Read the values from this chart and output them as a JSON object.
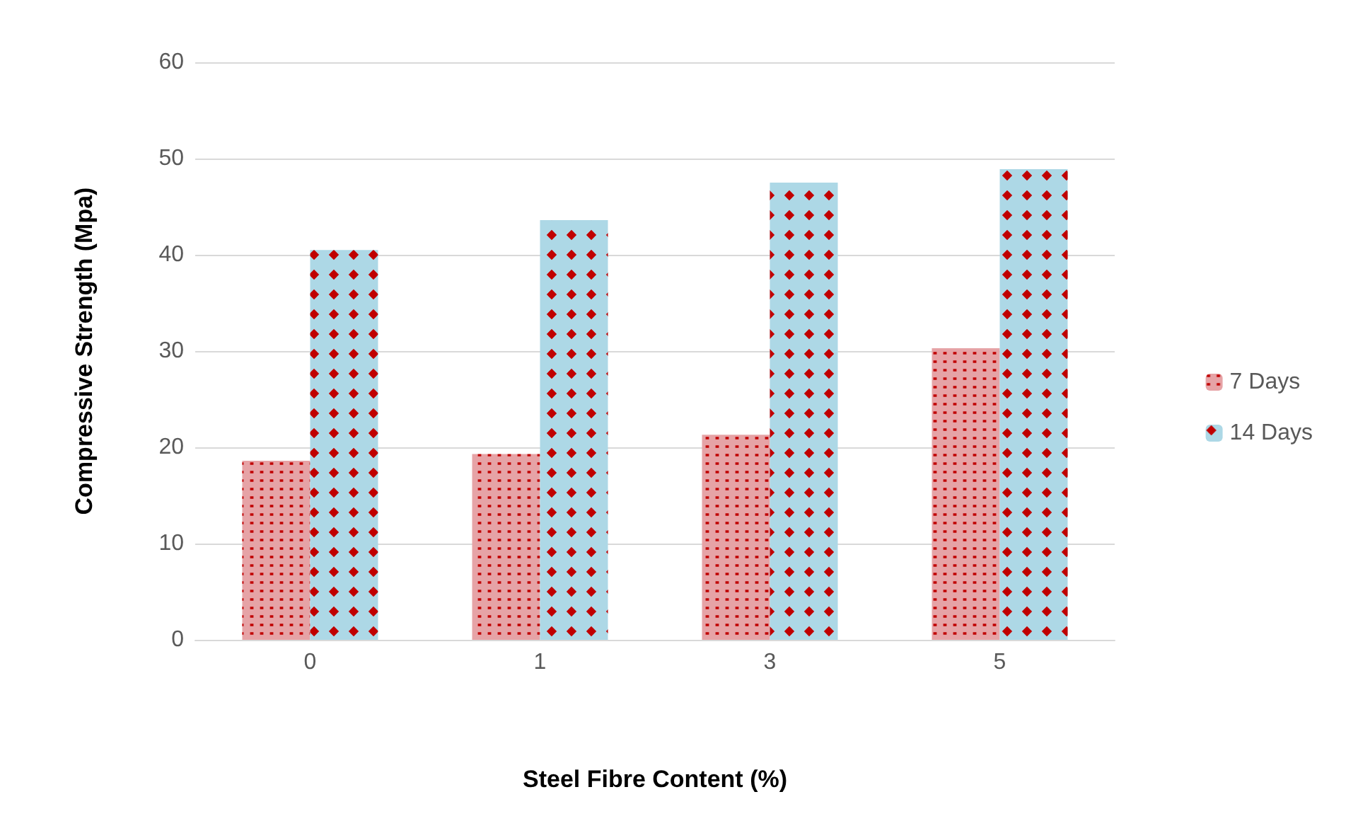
{
  "chart_data": {
    "type": "bar",
    "xlabel": "Steel Fibre Content (%)",
    "ylabel": "Compressive Strength (Mpa)",
    "categories": [
      "0",
      "1",
      "3",
      "5"
    ],
    "series": [
      {
        "name": "7 Days",
        "color": "#e6a3a6",
        "values": [
          18.6,
          19.3,
          21.3,
          30.3
        ]
      },
      {
        "name": "14 Days",
        "color": "#add8e6",
        "values": [
          40.5,
          43.6,
          47.5,
          48.9
        ]
      }
    ],
    "ylim": [
      0,
      60
    ],
    "yticks": [
      0,
      10,
      20,
      30,
      40,
      50,
      60
    ],
    "grid": "y",
    "legend": "right"
  }
}
